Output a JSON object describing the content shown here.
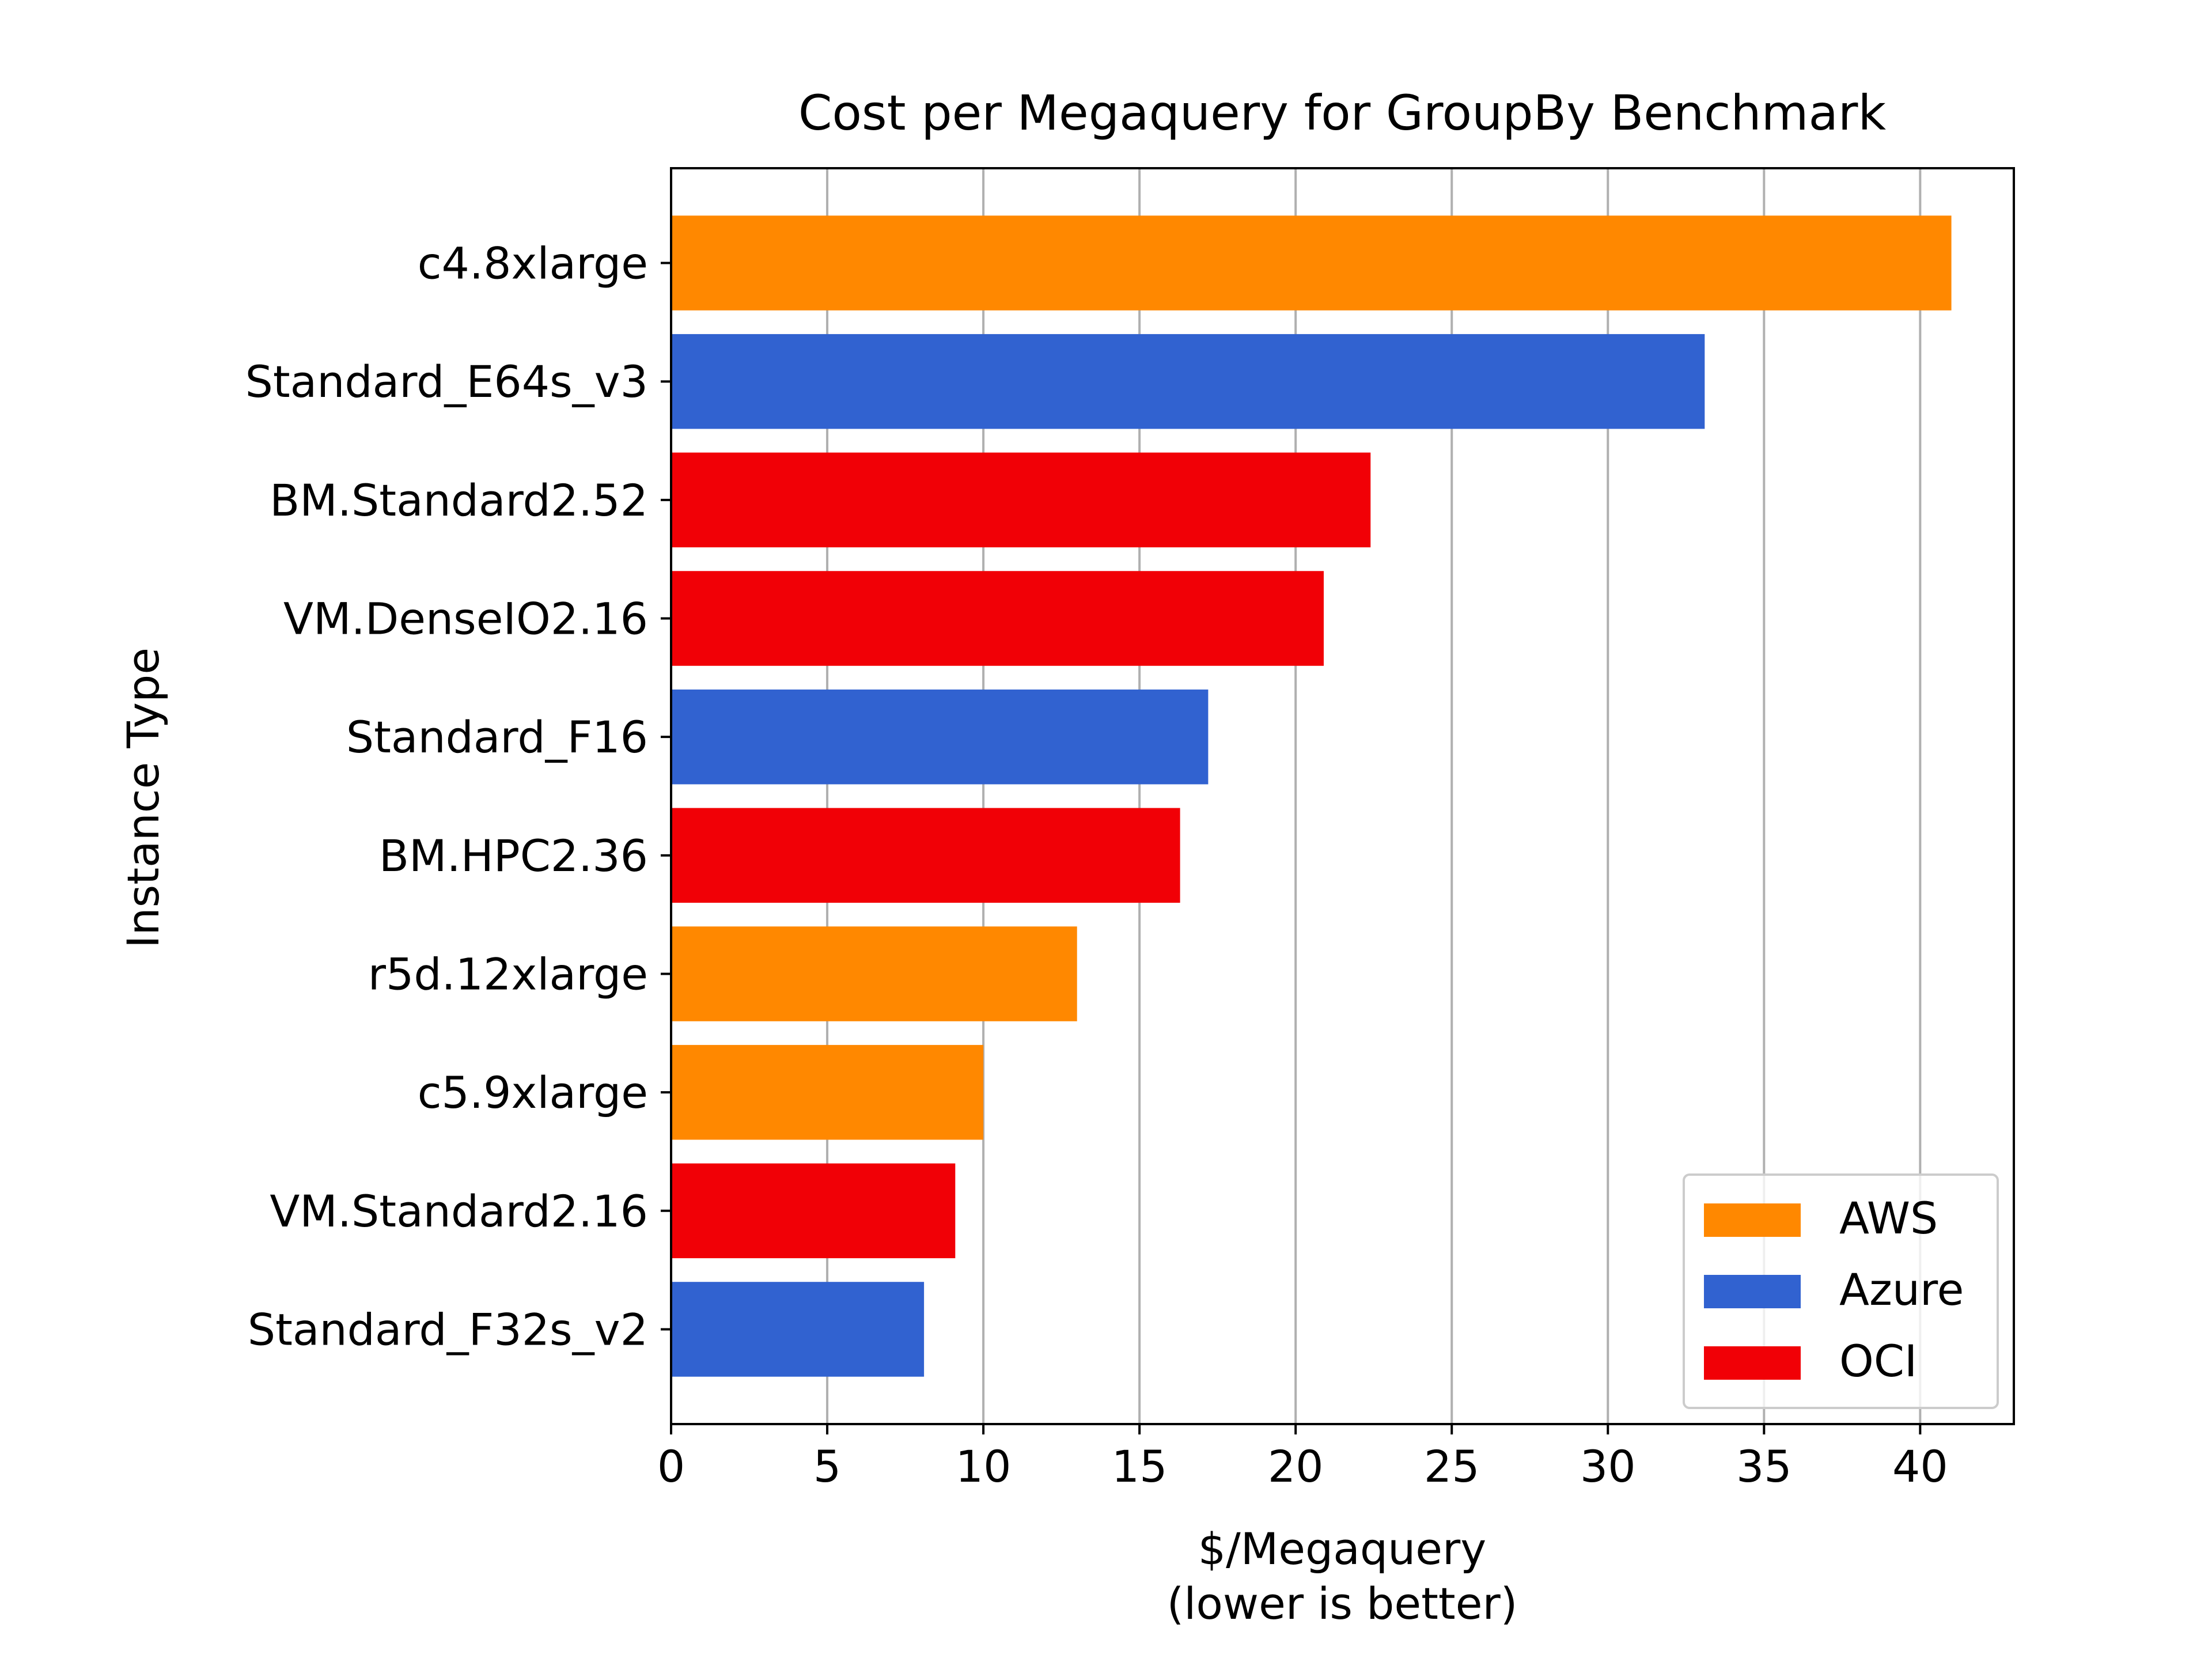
{
  "chart_data": {
    "type": "bar",
    "orientation": "horizontal",
    "title": "Cost per Megaquery for GroupBy Benchmark",
    "xlabel_line1": "$/Megaquery",
    "xlabel_line2": "(lower is better)",
    "ylabel": "Instance Type",
    "xlim": [
      0,
      43
    ],
    "xticks": [
      0,
      5,
      10,
      15,
      20,
      25,
      30,
      35,
      40
    ],
    "grid": "vertical",
    "legend_position": "bottom-right",
    "groups": [
      {
        "name": "AWS",
        "color": "#ff8800"
      },
      {
        "name": "Azure",
        "color": "#3162d0"
      },
      {
        "name": "OCI",
        "color": "#f10006"
      }
    ],
    "bars": [
      {
        "label": "c4.8xlarge",
        "value": 41.0,
        "group": "AWS"
      },
      {
        "label": "Standard_E64s_v3",
        "value": 33.1,
        "group": "Azure"
      },
      {
        "label": "BM.Standard2.52",
        "value": 22.4,
        "group": "OCI"
      },
      {
        "label": "VM.DenseIO2.16",
        "value": 20.9,
        "group": "OCI"
      },
      {
        "label": "Standard_F16",
        "value": 17.2,
        "group": "Azure"
      },
      {
        "label": "BM.HPC2.36",
        "value": 16.3,
        "group": "OCI"
      },
      {
        "label": "r5d.12xlarge",
        "value": 13.0,
        "group": "AWS"
      },
      {
        "label": "c5.9xlarge",
        "value": 10.0,
        "group": "AWS"
      },
      {
        "label": "VM.Standard2.16",
        "value": 9.1,
        "group": "OCI"
      },
      {
        "label": "Standard_F32s_v2",
        "value": 8.1,
        "group": "Azure"
      }
    ]
  }
}
